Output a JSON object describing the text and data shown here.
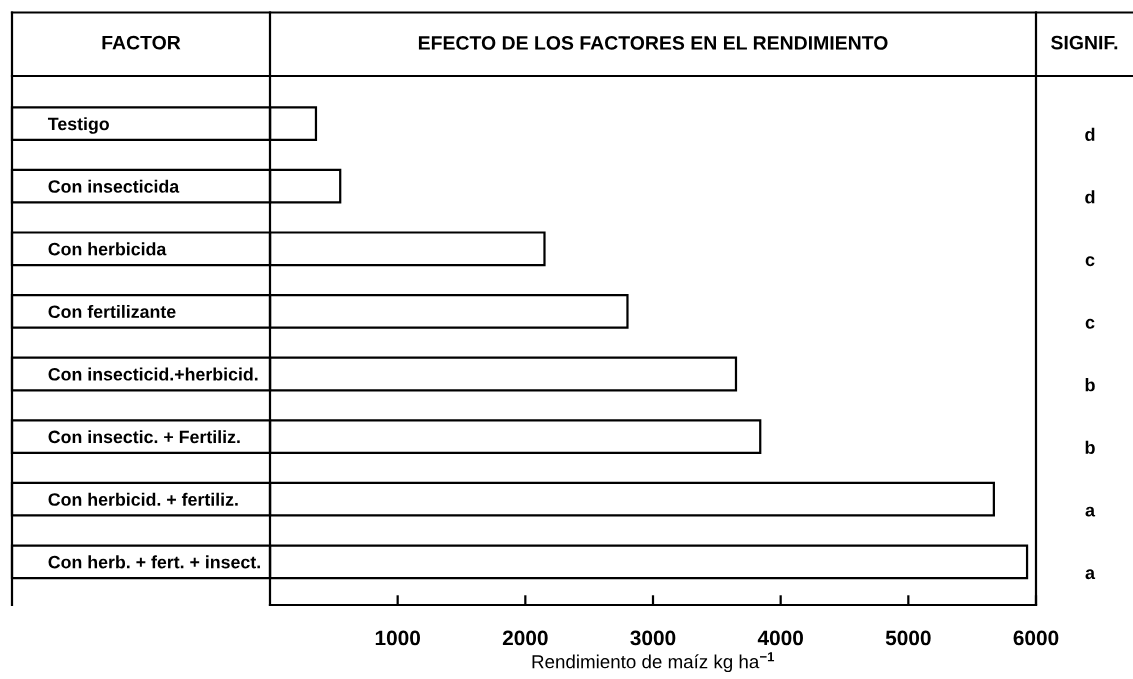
{
  "chart_data": {
    "type": "bar",
    "orientation": "horizontal",
    "title": "EFECTO DE LOS FACTORES EN EL RENDIMIENTO",
    "xlabel": "Rendimiento de maíz kg ha$^{−1}$",
    "categories": [
      "Testigo",
      "Con insecticida",
      "Con herbicida",
      "Con fertilizante",
      "Con insecticid.+herbicid.",
      "Con insectic. + Fertiliz.",
      "Con herbicid. + fertiliz.",
      "Con herb. + fert. + insect."
    ],
    "values": [
      360,
      550,
      2150,
      2800,
      3650,
      3840,
      5670,
      5930
    ],
    "color": "#ffffff",
    "xlim": [
      0,
      6000
    ],
    "xticks": [
      1000,
      2000,
      3000,
      4000,
      5000,
      6000
    ],
    "annotations": [
      "FACTOR",
      "SIGNIF.",
      "d",
      "d",
      "c",
      "c",
      "b",
      "b",
      "a",
      "a"
    ]
  }
}
